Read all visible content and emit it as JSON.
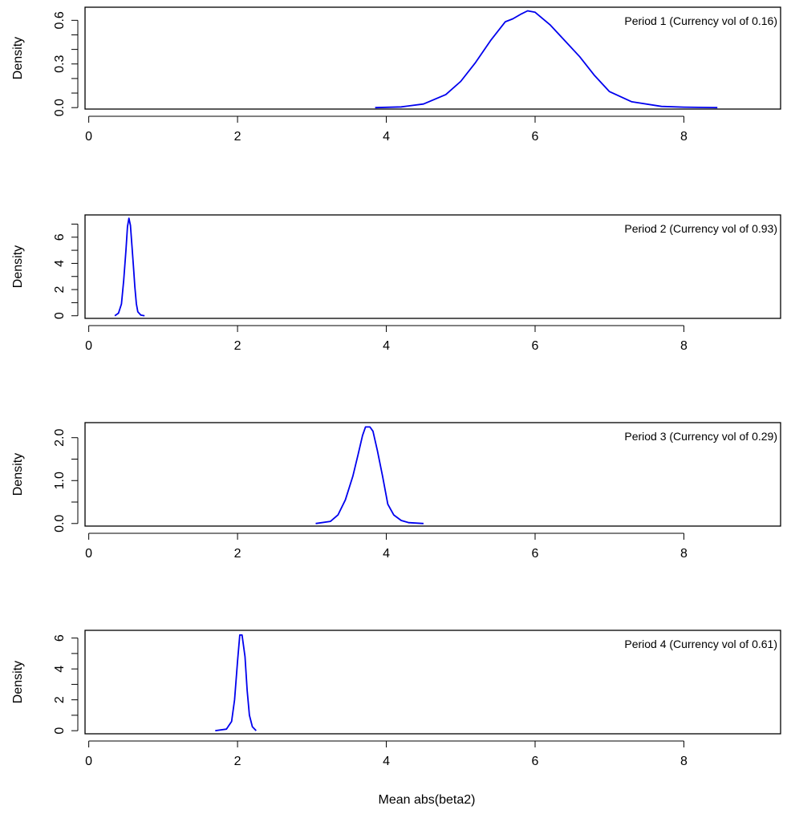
{
  "figure": {
    "xlabel": "Mean abs(beta2)"
  },
  "chart_data": [
    {
      "type": "line",
      "annotation": "Period 1 (Currency vol of 0.16)",
      "xlabel": "",
      "ylabel": "Density",
      "xlim": [
        -0.05,
        9.3
      ],
      "ylim": [
        -0.01,
        0.69
      ],
      "x_ticks": [
        0,
        2,
        4,
        6,
        8
      ],
      "x_tick_labels": [
        "0",
        "2",
        "4",
        "6",
        "8"
      ],
      "y_ticks": [
        0.0,
        0.3,
        0.6
      ],
      "y_tick_labels": [
        "0.0",
        "0.3",
        "0.6"
      ],
      "y_minor_ticks": [
        0.1,
        0.2,
        0.4,
        0.5
      ],
      "color": "#0000ee",
      "x": [
        3.85,
        4.2,
        4.5,
        4.8,
        5.0,
        5.2,
        5.4,
        5.6,
        5.7,
        5.8,
        5.9,
        6.0,
        6.2,
        6.4,
        6.6,
        6.8,
        7.0,
        7.3,
        7.7,
        8.0,
        8.45
      ],
      "y": [
        0.0,
        0.005,
        0.025,
        0.09,
        0.18,
        0.31,
        0.46,
        0.59,
        0.61,
        0.64,
        0.665,
        0.655,
        0.57,
        0.46,
        0.35,
        0.22,
        0.11,
        0.04,
        0.008,
        0.003,
        0.0
      ]
    },
    {
      "type": "line",
      "annotation": "Period 2 (Currency vol of 0.93)",
      "xlabel": "",
      "ylabel": "Density",
      "xlim": [
        -0.05,
        9.3
      ],
      "ylim": [
        -0.2,
        7.7
      ],
      "x_ticks": [
        0,
        2,
        4,
        6,
        8
      ],
      "x_tick_labels": [
        "0",
        "2",
        "4",
        "6",
        "8"
      ],
      "y_ticks": [
        0,
        2,
        4,
        6
      ],
      "y_tick_labels": [
        "0",
        "2",
        "4",
        "6"
      ],
      "y_minor_ticks": [
        1,
        3,
        5,
        7
      ],
      "color": "#0000ee",
      "x": [
        0.35,
        0.4,
        0.44,
        0.47,
        0.5,
        0.52,
        0.54,
        0.56,
        0.58,
        0.6,
        0.62,
        0.64,
        0.66,
        0.7,
        0.75
      ],
      "y": [
        0.0,
        0.2,
        0.9,
        2.7,
        5.0,
        6.8,
        7.45,
        6.9,
        5.4,
        3.8,
        2.2,
        0.9,
        0.3,
        0.05,
        0.0
      ]
    },
    {
      "type": "line",
      "annotation": "Period 3 (Currency vol of 0.29)",
      "xlabel": "",
      "ylabel": "Density",
      "xlim": [
        -0.05,
        9.3
      ],
      "ylim": [
        -0.06,
        2.35
      ],
      "x_ticks": [
        0,
        2,
        4,
        6,
        8
      ],
      "x_tick_labels": [
        "0",
        "2",
        "4",
        "6",
        "8"
      ],
      "y_ticks": [
        0.0,
        1.0,
        2.0
      ],
      "y_tick_labels": [
        "0.0",
        "1.0",
        "2.0"
      ],
      "y_minor_ticks": [
        0.5,
        1.5
      ],
      "color": "#0000ee",
      "x": [
        3.05,
        3.25,
        3.35,
        3.45,
        3.55,
        3.62,
        3.68,
        3.72,
        3.78,
        3.82,
        3.88,
        3.95,
        4.02,
        4.1,
        4.2,
        4.3,
        4.5
      ],
      "y": [
        0.0,
        0.05,
        0.2,
        0.55,
        1.1,
        1.6,
        2.05,
        2.25,
        2.25,
        2.15,
        1.7,
        1.1,
        0.45,
        0.2,
        0.07,
        0.02,
        0.0
      ]
    },
    {
      "type": "line",
      "annotation": "Period 4 (Currency vol of 0.61)",
      "xlabel": "Mean abs(beta2)",
      "ylabel": "Density",
      "xlim": [
        -0.05,
        9.3
      ],
      "ylim": [
        -0.2,
        6.5
      ],
      "x_ticks": [
        0,
        2,
        4,
        6,
        8
      ],
      "x_tick_labels": [
        "0",
        "2",
        "4",
        "6",
        "8"
      ],
      "y_ticks": [
        0,
        2,
        4,
        6
      ],
      "y_tick_labels": [
        "0",
        "2",
        "4",
        "6"
      ],
      "y_minor_ticks": [
        1,
        3,
        5
      ],
      "color": "#0000ee",
      "x": [
        1.7,
        1.85,
        1.92,
        1.96,
        2.0,
        2.03,
        2.06,
        2.1,
        2.13,
        2.16,
        2.2,
        2.25
      ],
      "y": [
        0.0,
        0.1,
        0.6,
        2.0,
        4.5,
        6.2,
        6.2,
        4.8,
        2.6,
        1.0,
        0.25,
        0.0
      ]
    }
  ]
}
